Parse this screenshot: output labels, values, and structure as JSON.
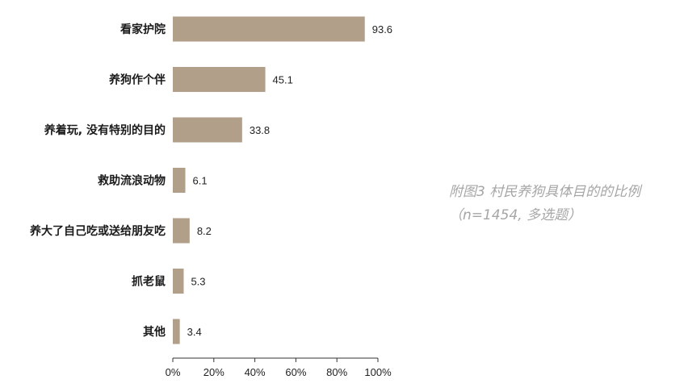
{
  "caption": {
    "line1": "附图3  村民养狗具体目的的比例",
    "line2": "（n=1454, 多选题）"
  },
  "colors": {
    "bar": "#b19f89",
    "axis": "#333333",
    "caption": "#a6a6a6"
  },
  "chart_data": {
    "type": "bar",
    "orientation": "horizontal",
    "categories": [
      "看家护院",
      "养狗作个伴",
      "养着玩, 没有特别的目的",
      "救助流浪动物",
      "养大了自己吃或送给朋友吃",
      "抓老鼠",
      "其他"
    ],
    "values": [
      93.6,
      45.1,
      33.8,
      6.1,
      8.2,
      5.3,
      3.4
    ],
    "value_labels": [
      "93.6",
      "45.1",
      "33.8",
      "6.1",
      "8.2",
      "5.3",
      "3.4"
    ],
    "xlim": [
      0,
      100
    ],
    "xticks": [
      0,
      20,
      40,
      60,
      80,
      100
    ],
    "xtick_labels": [
      "0%",
      "20%",
      "40%",
      "60%",
      "80%",
      "100%"
    ],
    "grid": false,
    "legend": false
  }
}
